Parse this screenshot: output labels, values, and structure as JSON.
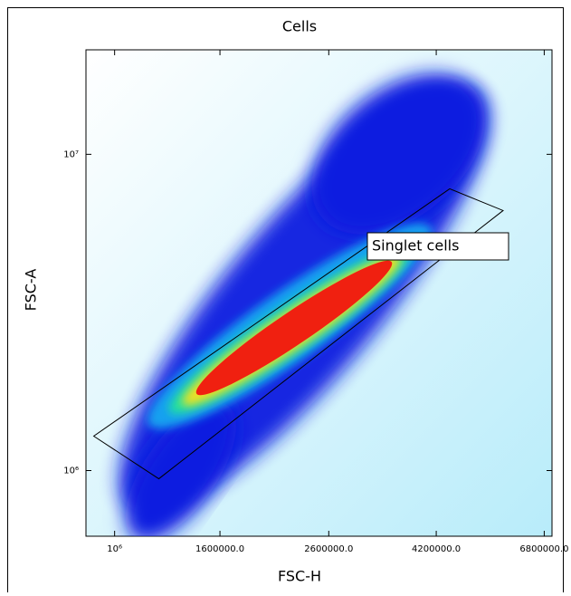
{
  "chart_data": {
    "type": "density",
    "title": "Cells",
    "x_label": "FSC-H",
    "y_label": "FSC-A",
    "x_scale": "log",
    "y_scale": "log",
    "xlim": [
      880000,
      7040000
    ],
    "xticks": [
      {
        "value": 1000000,
        "label": "10⁶"
      },
      {
        "value": 1600000,
        "label": "1600000.0"
      },
      {
        "value": 2600000,
        "label": "2600000.0"
      },
      {
        "value": 4200000,
        "label": "4200000.0"
      },
      {
        "value": 6800000,
        "label": "6800000.0"
      }
    ],
    "ylim": [
      620000,
      21400000
    ],
    "yticks": [
      {
        "value": 1000000,
        "label": "10⁶"
      },
      {
        "value": 10000000,
        "label": "10⁷"
      }
    ],
    "gate": {
      "name": "Singlet cells",
      "x": [
        911000,
        1218000,
        5660000,
        4460000
      ],
      "y": [
        1285000,
        942000,
        6640000,
        7780000
      ]
    }
  }
}
